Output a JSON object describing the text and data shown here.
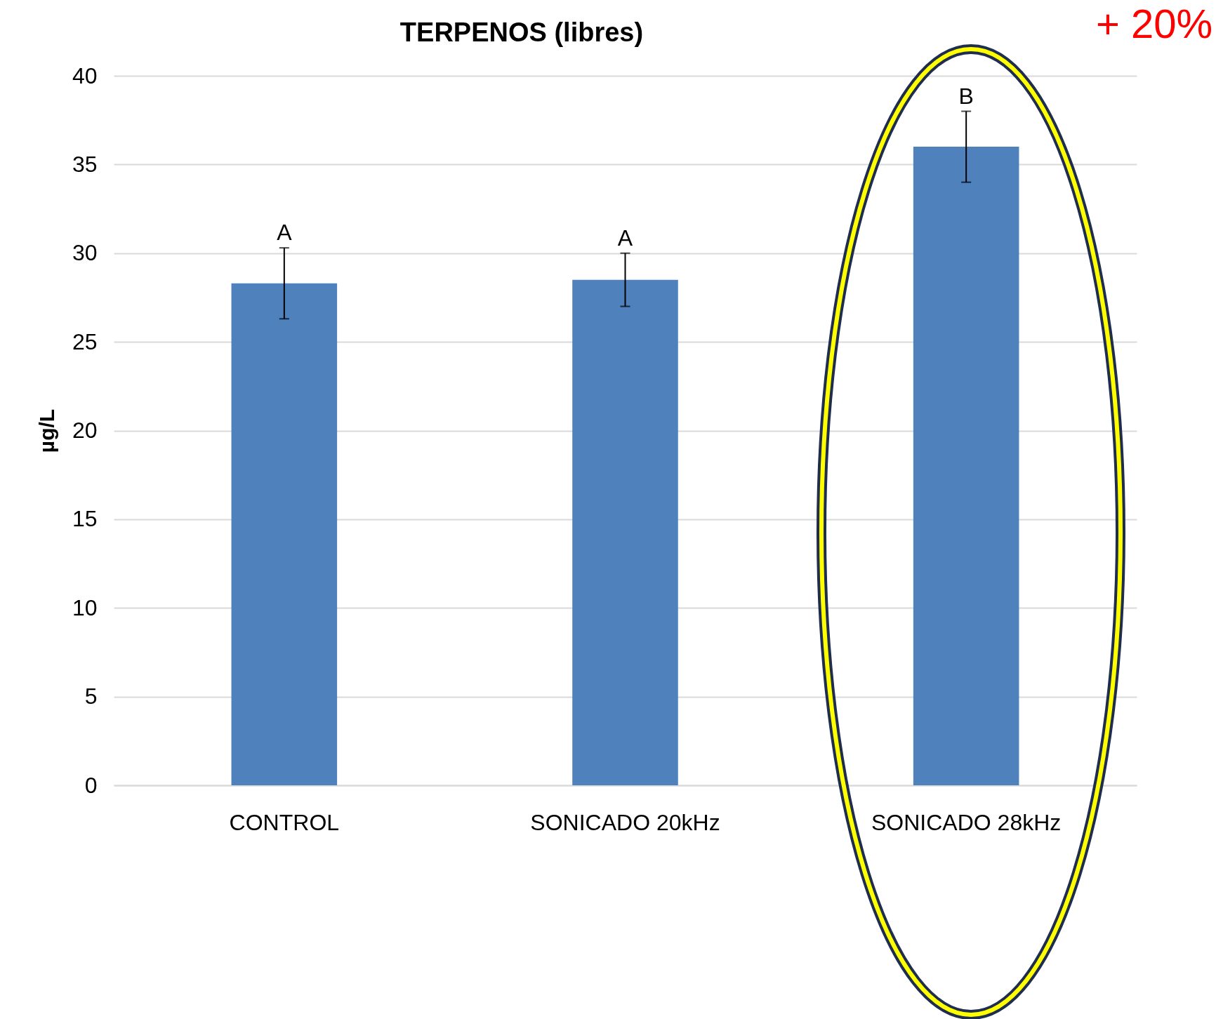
{
  "chart_data": {
    "type": "bar",
    "title": "TERPENOS (libres)",
    "ylabel": "µg/L",
    "categories": [
      "CONTROL",
      "SONICADO 20kHz",
      "SONICADO 28kHz"
    ],
    "values": [
      28.3,
      28.5,
      36
    ],
    "errors": [
      2,
      1.5,
      2
    ],
    "color": "#4f81bd",
    "ylim": [
      0,
      40
    ],
    "yticks": [
      0,
      5,
      10,
      15,
      20,
      25,
      30,
      35,
      40
    ],
    "grid": "y",
    "annotations": [
      {
        "text": "A",
        "x": "CONTROL",
        "y": 30.3
      },
      {
        "text": "A",
        "x": "SONICADO 20kHz",
        "y": 30
      },
      {
        "text": "B",
        "x": "SONICADO 28kHz",
        "y": 38
      },
      "+ 20%"
    ]
  }
}
